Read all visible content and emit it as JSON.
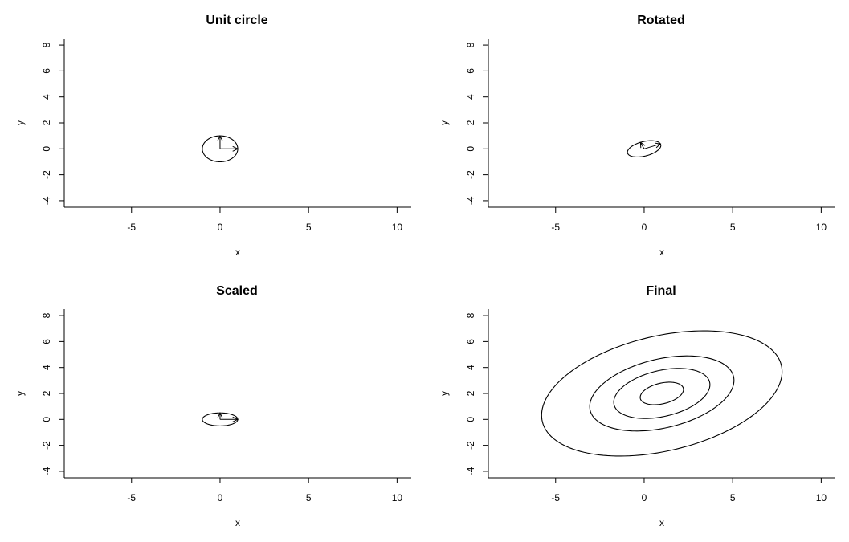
{
  "chart_data": [
    {
      "type": "line",
      "title": "Unit circle",
      "xlabel": "x",
      "ylabel": "y",
      "xlim": [
        -8.8,
        10.8
      ],
      "ylim": [
        -4.5,
        8.5
      ],
      "xticks": [
        -5,
        0,
        5,
        10
      ],
      "yticks": [
        -4,
        -2,
        0,
        2,
        4,
        6,
        8
      ],
      "series": [
        {
          "shape": "ellipse",
          "center": [
            0,
            0
          ],
          "axes": [
            [
              1,
              0
            ],
            [
              0,
              1
            ]
          ],
          "scales": [
            1
          ]
        }
      ],
      "arrows": [
        {
          "from": [
            0,
            0
          ],
          "to": [
            1,
            0
          ]
        },
        {
          "from": [
            0,
            0
          ],
          "to": [
            0,
            1
          ]
        }
      ]
    },
    {
      "type": "line",
      "title": "Rotated",
      "xlabel": "x",
      "ylabel": "y",
      "xlim": [
        -8.8,
        10.8
      ],
      "ylim": [
        -4.5,
        8.5
      ],
      "xticks": [
        -5,
        0,
        5,
        10
      ],
      "yticks": [
        -4,
        -2,
        0,
        2,
        4,
        6,
        8
      ],
      "series": [
        {
          "shape": "ellipse",
          "center": [
            0,
            0
          ],
          "axes": [
            [
              0.92,
              0.38
            ],
            [
              -0.21,
              0.5
            ]
          ],
          "scales": [
            1
          ]
        }
      ],
      "arrows": [
        {
          "from": [
            0,
            0
          ],
          "to": [
            0.92,
            0.38
          ]
        },
        {
          "from": [
            0,
            0
          ],
          "to": [
            -0.21,
            0.5
          ]
        }
      ]
    },
    {
      "type": "line",
      "title": "Scaled",
      "xlabel": "x",
      "ylabel": "y",
      "xlim": [
        -8.8,
        10.8
      ],
      "ylim": [
        -4.5,
        8.5
      ],
      "xticks": [
        -5,
        0,
        5,
        10
      ],
      "yticks": [
        -4,
        -2,
        0,
        2,
        4,
        6,
        8
      ],
      "series": [
        {
          "shape": "ellipse",
          "center": [
            0,
            0
          ],
          "axes": [
            [
              1,
              0
            ],
            [
              0,
              0.5
            ]
          ],
          "scales": [
            1
          ]
        }
      ],
      "arrows": [
        {
          "from": [
            0,
            0
          ],
          "to": [
            1,
            0
          ]
        },
        {
          "from": [
            0,
            0
          ],
          "to": [
            0,
            0.5
          ]
        }
      ]
    },
    {
      "type": "line",
      "title": "Final",
      "xlabel": "x",
      "ylabel": "y",
      "xlim": [
        -8.8,
        10.8
      ],
      "ylim": [
        -4.5,
        8.5
      ],
      "xticks": [
        -5,
        0,
        5,
        10
      ],
      "yticks": [
        -4,
        -2,
        0,
        2,
        4,
        6,
        8
      ],
      "series": [
        {
          "shape": "ellipse",
          "center": [
            1,
            2
          ],
          "axes": [
            [
              6.6,
              2.7
            ],
            [
              -1.6,
              4.0
            ]
          ],
          "scales": [
            0.18,
            0.4,
            0.6,
            1.0
          ]
        }
      ],
      "arrows": []
    }
  ]
}
